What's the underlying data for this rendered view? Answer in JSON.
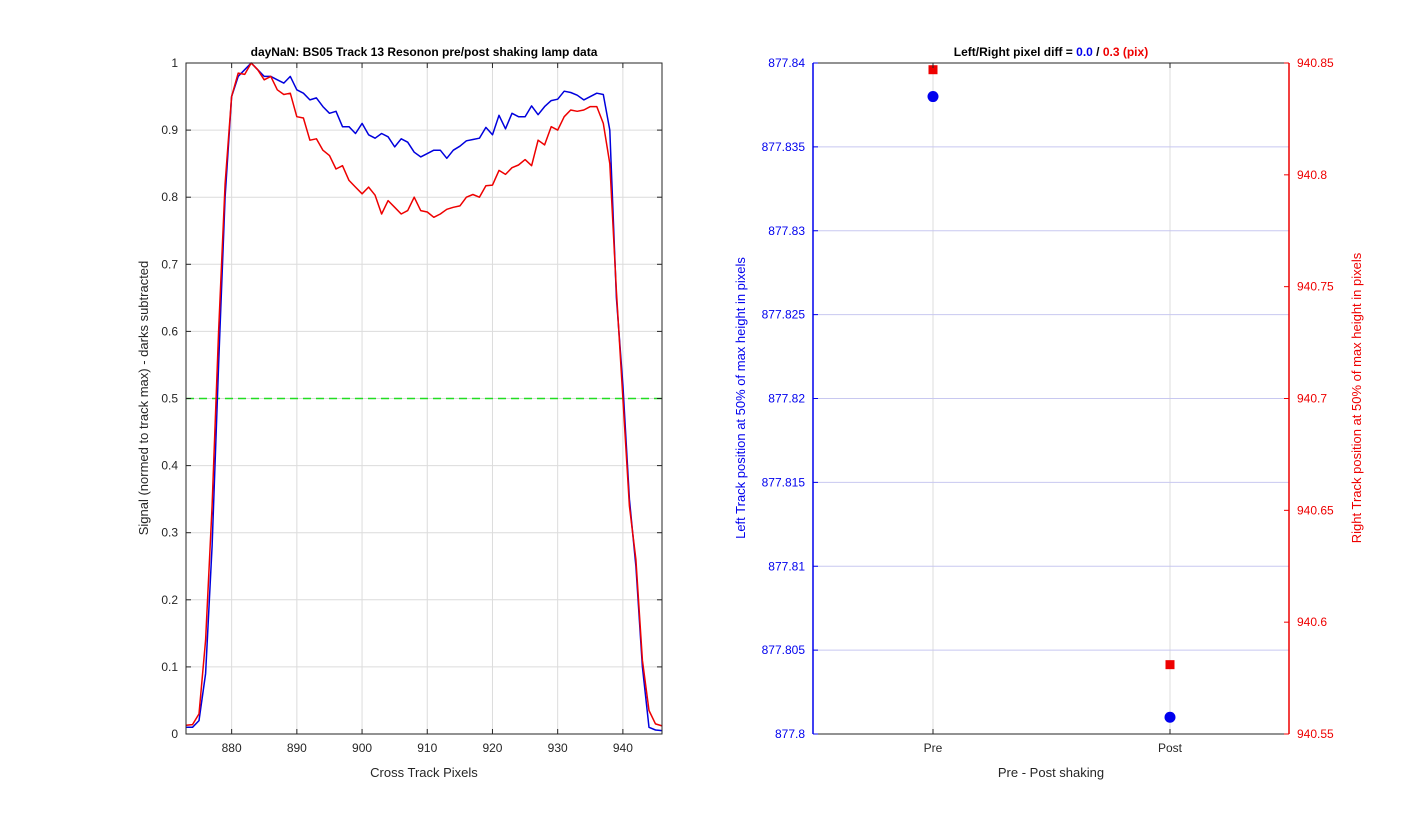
{
  "chart_data": [
    {
      "type": "line",
      "title": "dayNaN: BS05  Track 13 Resonon pre/post shaking lamp data",
      "xlabel": "Cross Track Pixels",
      "ylabel": "Signal (normed to track max) - darks subtracted",
      "xlim": [
        873,
        946
      ],
      "ylim": [
        0,
        1
      ],
      "x_ticks": [
        880,
        890,
        900,
        910,
        920,
        930,
        940
      ],
      "y_ticks": [
        0,
        0.1,
        0.2,
        0.3,
        0.4,
        0.5,
        0.6,
        0.7,
        0.8,
        0.9,
        1
      ],
      "grid": true,
      "reference_line": {
        "y": 0.5,
        "color": "#22dd22",
        "style": "dashed"
      },
      "x": [
        873,
        874,
        875,
        876,
        877,
        878,
        879,
        880,
        881,
        882,
        883,
        884,
        885,
        886,
        887,
        888,
        889,
        890,
        891,
        892,
        893,
        894,
        895,
        896,
        897,
        898,
        899,
        900,
        901,
        902,
        903,
        904,
        905,
        906,
        907,
        908,
        909,
        910,
        911,
        912,
        913,
        914,
        915,
        916,
        917,
        918,
        919,
        920,
        921,
        922,
        923,
        924,
        925,
        926,
        927,
        928,
        929,
        930,
        931,
        932,
        933,
        934,
        935,
        936,
        937,
        938,
        939,
        940,
        941,
        942,
        943,
        944,
        945,
        946
      ],
      "series": [
        {
          "color": "#0000dd",
          "values": [
            0.01,
            0.01,
            0.02,
            0.09,
            0.28,
            0.55,
            0.8,
            0.95,
            0.98,
            0.99,
            1.0,
            0.99,
            0.98,
            0.98,
            0.975,
            0.97,
            0.98,
            0.96,
            0.955,
            0.945,
            0.948,
            0.935,
            0.925,
            0.928,
            0.905,
            0.905,
            0.895,
            0.91,
            0.893,
            0.888,
            0.895,
            0.89,
            0.875,
            0.887,
            0.882,
            0.867,
            0.86,
            0.865,
            0.87,
            0.87,
            0.858,
            0.87,
            0.876,
            0.884,
            0.886,
            0.888,
            0.904,
            0.893,
            0.922,
            0.902,
            0.925,
            0.92,
            0.92,
            0.936,
            0.923,
            0.935,
            0.944,
            0.946,
            0.958,
            0.956,
            0.952,
            0.945,
            0.95,
            0.955,
            0.953,
            0.9,
            0.65,
            0.52,
            0.35,
            0.25,
            0.1,
            0.01,
            0.006,
            0.005
          ]
        },
        {
          "color": "#ee0000",
          "values": [
            0.013,
            0.014,
            0.03,
            0.14,
            0.34,
            0.6,
            0.82,
            0.95,
            0.985,
            0.983,
            1.0,
            0.99,
            0.975,
            0.98,
            0.96,
            0.953,
            0.955,
            0.92,
            0.918,
            0.885,
            0.887,
            0.87,
            0.862,
            0.842,
            0.847,
            0.825,
            0.815,
            0.805,
            0.815,
            0.803,
            0.775,
            0.795,
            0.785,
            0.775,
            0.78,
            0.8,
            0.78,
            0.778,
            0.77,
            0.775,
            0.782,
            0.785,
            0.787,
            0.8,
            0.804,
            0.8,
            0.817,
            0.818,
            0.84,
            0.834,
            0.844,
            0.848,
            0.856,
            0.847,
            0.885,
            0.878,
            0.905,
            0.9,
            0.92,
            0.93,
            0.928,
            0.93,
            0.935,
            0.935,
            0.91,
            0.85,
            0.66,
            0.5,
            0.34,
            0.26,
            0.11,
            0.035,
            0.015,
            0.012
          ]
        }
      ]
    },
    {
      "type": "scatter",
      "title_prefix": "Left/Right pixel diff = ",
      "title_left": "0.0",
      "title_sep": " / ",
      "title_right": "0.3 (pix)",
      "xlabel": "Pre - Post shaking",
      "categories": [
        "Pre",
        "Post"
      ],
      "ylabel_left": "Left Track position at 50% of max height in pixels",
      "ylabel_right": "Right Track position at 50% of max height in pixels",
      "ylim_left": [
        877.8,
        877.84
      ],
      "ylim_right": [
        940.55,
        940.85
      ],
      "y_ticks_left": [
        "877.8",
        "877.805",
        "877.81",
        "877.815",
        "877.82",
        "877.825",
        "877.83",
        "877.835",
        "877.84"
      ],
      "y_ticks_right": [
        "940.55",
        "940.6",
        "940.65",
        "940.7",
        "940.75",
        "940.8",
        "940.85"
      ],
      "grid": true,
      "series": [
        {
          "axis": "left",
          "marker": "circle",
          "color": "#0000ee",
          "values": [
            877.838,
            877.801
          ]
        },
        {
          "axis": "right",
          "marker": "square",
          "color": "#ee0000",
          "values": [
            940.847,
            940.581
          ]
        }
      ]
    }
  ]
}
